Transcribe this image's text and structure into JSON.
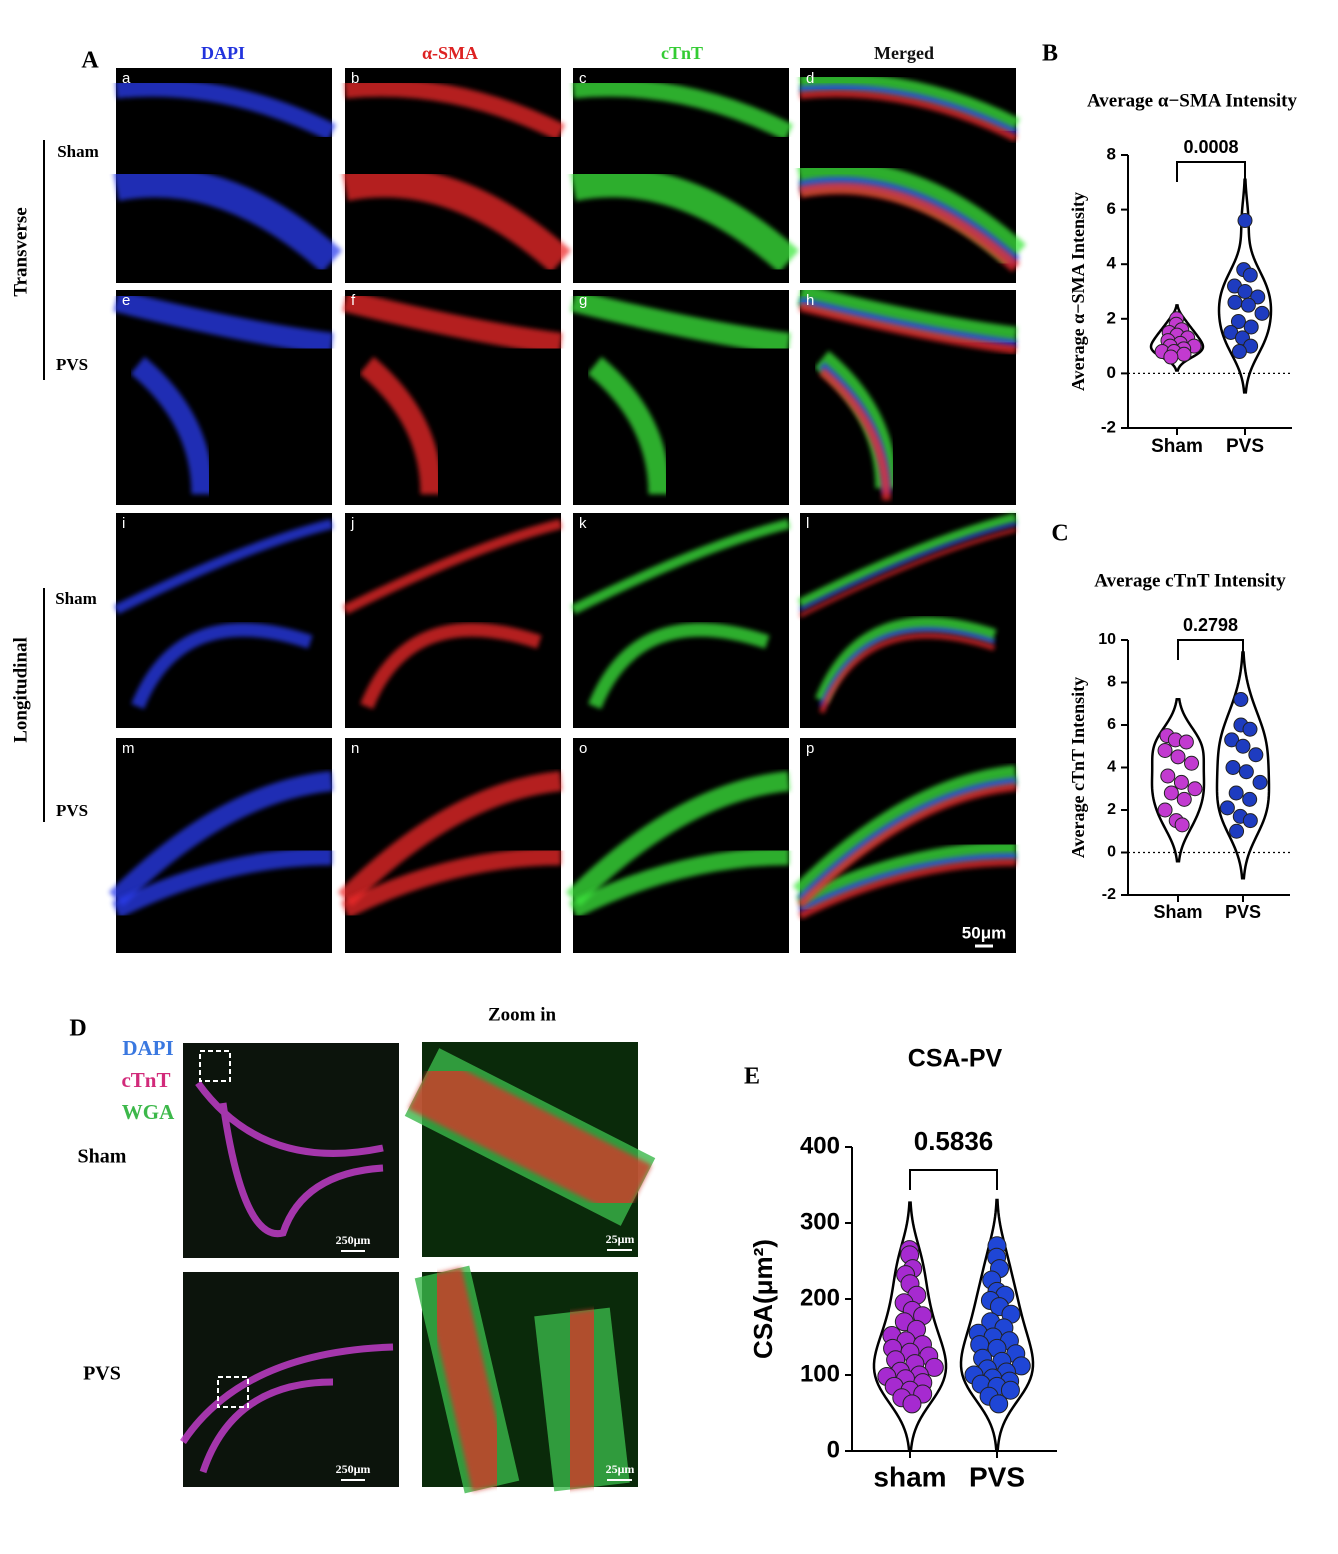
{
  "panel_A": {
    "label": "A",
    "columns": [
      "DAPI",
      "α-SMA",
      "cTnT",
      "Merged"
    ],
    "groups": [
      {
        "label": "Transverse",
        "rows": [
          "Sham",
          "PVS"
        ]
      },
      {
        "label": "Longitudinal",
        "rows": [
          "Sham",
          "PVS"
        ]
      }
    ],
    "panel_letters": [
      "a",
      "b",
      "c",
      "d",
      "e",
      "f",
      "g",
      "h",
      "i",
      "j",
      "k",
      "l",
      "m",
      "n",
      "o",
      "p"
    ],
    "scale_bar": "50μm"
  },
  "panel_B": {
    "label": "B"
  },
  "panel_C": {
    "label": "C"
  },
  "panel_D": {
    "label": "D",
    "stains": [
      "DAPI",
      "cTnT",
      "WGA"
    ],
    "rows": [
      "Sham",
      "PVS"
    ],
    "zoom_title": "Zoom in",
    "scale_bars": [
      "250μm",
      "25μm"
    ]
  },
  "panel_E": {
    "label": "E"
  },
  "chart_data": [
    {
      "type": "violin",
      "title": "Average α−SMA Intensity",
      "ylabel": "Average α−SMA Intensity",
      "annotation": "0.0008",
      "categories": [
        "Sham",
        "PVS"
      ],
      "colors": [
        "#c23ad0",
        "#1e3cc0"
      ],
      "values": [
        [
          2.0,
          1.8,
          1.6,
          1.5,
          1.4,
          1.3,
          1.2,
          1.1,
          1.0,
          1.0,
          0.9,
          0.8,
          0.8,
          0.7,
          0.6
        ],
        [
          5.6,
          3.8,
          3.6,
          3.2,
          3.0,
          2.8,
          2.6,
          2.5,
          2.2,
          1.9,
          1.7,
          1.5,
          1.3,
          1.0,
          0.8
        ]
      ],
      "ylim": [
        -2,
        8
      ],
      "yticks": [
        -2,
        0,
        2,
        4,
        6,
        8
      ],
      "reference_line": 0
    },
    {
      "type": "violin",
      "title": "Average cTnT Intensity",
      "ylabel": "Average cTnT Intensity",
      "annotation": "0.2798",
      "categories": [
        "Sham",
        "PVS"
      ],
      "colors": [
        "#c23ad0",
        "#1e3cc0"
      ],
      "values": [
        [
          5.5,
          5.3,
          5.2,
          4.8,
          4.5,
          4.2,
          3.6,
          3.3,
          3.0,
          2.8,
          2.5,
          2.0,
          1.5,
          1.3
        ],
        [
          7.2,
          6.0,
          5.8,
          5.3,
          5.0,
          4.6,
          4.0,
          3.8,
          3.3,
          2.8,
          2.5,
          2.1,
          1.7,
          1.5,
          1.0
        ]
      ],
      "ylim": [
        -2,
        10
      ],
      "yticks": [
        -2,
        0,
        2,
        4,
        6,
        8,
        10
      ],
      "reference_line": 0
    },
    {
      "type": "violin",
      "title": "CSA-PV",
      "ylabel": "CSA(μm²)",
      "annotation": "0.5836",
      "categories": [
        "sham",
        "PVS"
      ],
      "colors": [
        "#a62ad0",
        "#1f46d6"
      ],
      "values": [
        [
          265,
          258,
          240,
          232,
          220,
          205,
          195,
          185,
          178,
          170,
          160,
          152,
          145,
          140,
          135,
          130,
          125,
          120,
          115,
          110,
          105,
          100,
          98,
          95,
          90,
          85,
          80,
          75,
          70,
          62
        ],
        [
          270,
          255,
          240,
          225,
          210,
          205,
          198,
          190,
          180,
          170,
          162,
          155,
          150,
          145,
          140,
          135,
          128,
          122,
          118,
          112,
          108,
          104,
          100,
          96,
          92,
          88,
          85,
          80,
          72,
          62
        ]
      ],
      "ylim": [
        0,
        400
      ],
      "yticks": [
        0,
        100,
        200,
        300,
        400
      ]
    }
  ]
}
